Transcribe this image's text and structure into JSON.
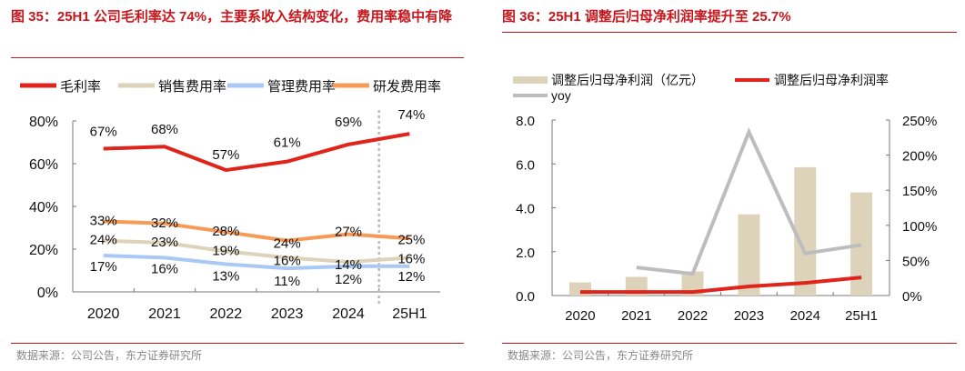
{
  "left": {
    "title": "图 35：25H1 公司毛利率达 74%，主要系收入结构变化，费用率稳中有降",
    "source": "数据来源：公司公告，东方证券研究所"
  },
  "right": {
    "title": "图 36：25H1 调整后归母净利润率提升至 25.7%",
    "source": "数据来源：公司公告，东方证券研究所"
  },
  "chart_data": [
    {
      "type": "line",
      "categories": [
        "2020",
        "2021",
        "2022",
        "2023",
        "2024",
        "25H1"
      ],
      "y_ticks": [
        "0%",
        "20%",
        "40%",
        "60%",
        "80%"
      ],
      "ylim": [
        0,
        80
      ],
      "legend_position": "top",
      "series": [
        {
          "name": "毛利率",
          "color": "#e0241b",
          "values": [
            67,
            68,
            57,
            61,
            69,
            74
          ],
          "labels": [
            "67%",
            "68%",
            "57%",
            "61%",
            "69%",
            "74%"
          ]
        },
        {
          "name": "销售费用率",
          "color": "#ddd3bb",
          "values": [
            24,
            23,
            19,
            16,
            14,
            16
          ],
          "labels": [
            "24%",
            "23%",
            "19%",
            "16%",
            "14%",
            "16%"
          ]
        },
        {
          "name": "管理费用率",
          "color": "#a9c8f5",
          "values": [
            17,
            16,
            13,
            11,
            12,
            12
          ],
          "labels": [
            "17%",
            "16%",
            "13%",
            "11%",
            "12%",
            "12%"
          ]
        },
        {
          "name": "研发费用率",
          "color": "#f79a55",
          "values": [
            33,
            32,
            28,
            24,
            27,
            25
          ],
          "labels": [
            "33%",
            "32%",
            "28%",
            "24%",
            "27%",
            "25%"
          ]
        }
      ],
      "divider": "dotted vertical line between 2024 and 25H1"
    },
    {
      "type": "bar+line",
      "categories": [
        "2020",
        "2021",
        "2022",
        "2023",
        "2024",
        "25H1"
      ],
      "y_left_ticks": [
        "0.0",
        "2.0",
        "4.0",
        "6.0",
        "8.0"
      ],
      "y_left_lim": [
        0,
        8
      ],
      "y_right_ticks": [
        "0%",
        "50%",
        "100%",
        "150%",
        "200%",
        "250%"
      ],
      "y_right_lim": [
        0,
        250
      ],
      "legend_position": "top",
      "series": [
        {
          "name": "调整后归母净利润（亿元）",
          "type": "bar",
          "axis": "left",
          "color": "#ddd3bb",
          "values": [
            0.6,
            0.85,
            1.1,
            3.7,
            5.85,
            4.7
          ]
        },
        {
          "name": "调整后归母净利润率",
          "type": "line",
          "axis": "right",
          "color": "#e0241b",
          "values": [
            5,
            5,
            5,
            13,
            18,
            25.7
          ]
        },
        {
          "name": "yoy",
          "type": "line",
          "axis": "right",
          "color": "#bdbdbd",
          "values": [
            null,
            40,
            31,
            233,
            60,
            72
          ]
        }
      ]
    }
  ]
}
